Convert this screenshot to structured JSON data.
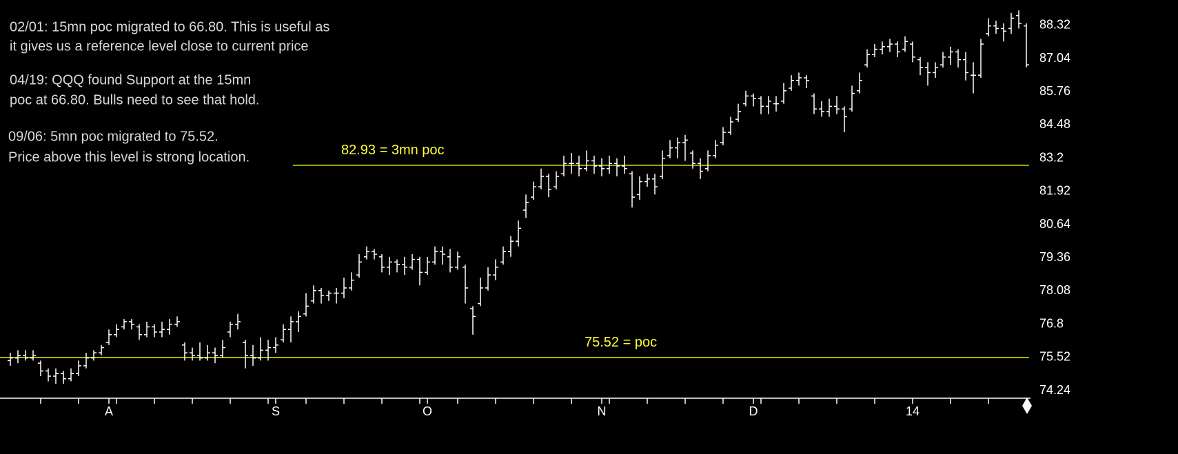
{
  "chart_data": {
    "type": "ohlc",
    "annotations": [
      "02/01: 15mn poc migrated to 66.80.  This is useful as",
      "it gives us a reference level close to current price",
      "04/19: QQQ found Support at the 15mn",
      "poc at 66.80.  Bulls need to see that hold.",
      "09/06: 5mn poc migrated to 75.52.",
      "Price above this level is strong location."
    ],
    "hlines": [
      {
        "value": 82.93,
        "label": "82.93 = 3mn poc",
        "color": "#e8e800"
      },
      {
        "value": 75.52,
        "label": "75.52 = poc",
        "color": "#e8e800"
      }
    ],
    "color": "#ffffff",
    "ylim": [
      73.95,
      89.3
    ],
    "yticks": [
      74.24,
      75.52,
      76.8,
      78.08,
      79.36,
      80.64,
      81.92,
      83.2,
      84.48,
      85.76,
      87.04,
      88.32
    ],
    "categories": [
      null,
      null,
      null,
      null,
      null,
      null,
      null,
      null,
      null,
      null,
      null,
      null,
      null,
      "A",
      null,
      null,
      null,
      null,
      null,
      null,
      null,
      null,
      null,
      null,
      null,
      null,
      null,
      null,
      null,
      null,
      null,
      null,
      null,
      null,
      null,
      "S",
      null,
      null,
      null,
      null,
      null,
      null,
      null,
      null,
      null,
      null,
      null,
      null,
      null,
      null,
      null,
      null,
      null,
      null,
      null,
      "O",
      null,
      null,
      null,
      null,
      null,
      null,
      null,
      null,
      null,
      null,
      null,
      null,
      null,
      null,
      null,
      null,
      null,
      null,
      null,
      null,
      null,
      null,
      "N",
      null,
      null,
      null,
      null,
      null,
      null,
      null,
      null,
      null,
      null,
      null,
      null,
      null,
      null,
      null,
      null,
      null,
      null,
      null,
      "D",
      null,
      null,
      null,
      null,
      null,
      null,
      null,
      null,
      null,
      null,
      null,
      null,
      null,
      null,
      null,
      null,
      null,
      null,
      null,
      null,
      "14",
      null,
      null,
      null,
      null,
      null,
      null,
      null,
      null,
      null,
      null,
      null,
      null,
      null,
      null,
      null
    ],
    "ohlc": [
      [
        75.4,
        75.7,
        75.2,
        75.5
      ],
      [
        75.5,
        75.8,
        75.3,
        75.6
      ],
      [
        75.6,
        75.8,
        75.4,
        75.5
      ],
      [
        75.5,
        75.8,
        75.4,
        75.6
      ],
      [
        75.3,
        75.4,
        74.8,
        75.0
      ],
      [
        75.0,
        75.1,
        74.6,
        74.8
      ],
      [
        74.8,
        75.1,
        74.5,
        74.9
      ],
      [
        74.9,
        75.0,
        74.5,
        74.7
      ],
      [
        74.7,
        75.1,
        74.6,
        74.9
      ],
      [
        74.9,
        75.4,
        74.8,
        75.2
      ],
      [
        75.2,
        75.7,
        75.1,
        75.5
      ],
      [
        75.5,
        75.8,
        75.4,
        75.7
      ],
      [
        75.7,
        76.0,
        75.6,
        75.9
      ],
      [
        76.1,
        76.6,
        76.0,
        76.4
      ],
      [
        76.4,
        76.8,
        76.3,
        76.6
      ],
      [
        76.7,
        77.0,
        76.6,
        76.9
      ],
      [
        76.9,
        77.0,
        76.6,
        76.8
      ],
      [
        76.7,
        76.8,
        76.2,
        76.4
      ],
      [
        76.4,
        76.9,
        76.3,
        76.7
      ],
      [
        76.7,
        76.8,
        76.3,
        76.5
      ],
      [
        76.5,
        76.9,
        76.3,
        76.6
      ],
      [
        76.6,
        77.0,
        76.4,
        76.8
      ],
      [
        76.8,
        77.1,
        76.7,
        76.9
      ],
      [
        76.0,
        76.1,
        75.4,
        75.7
      ],
      [
        75.7,
        75.9,
        75.4,
        75.6
      ],
      [
        75.6,
        76.1,
        75.4,
        75.5
      ],
      [
        75.5,
        76.0,
        75.4,
        75.7
      ],
      [
        75.7,
        75.9,
        75.3,
        75.6
      ],
      [
        75.6,
        76.2,
        75.5,
        75.9
      ],
      [
        76.5,
        76.9,
        76.3,
        76.8
      ],
      [
        76.8,
        77.2,
        76.6,
        76.9
      ],
      [
        76.1,
        76.2,
        75.1,
        75.6
      ],
      [
        75.6,
        76.0,
        75.2,
        75.5
      ],
      [
        75.5,
        76.3,
        75.4,
        75.8
      ],
      [
        75.8,
        76.2,
        75.4,
        75.9
      ],
      [
        75.9,
        76.3,
        75.7,
        76.0
      ],
      [
        76.2,
        76.8,
        76.1,
        76.6
      ],
      [
        76.6,
        77.1,
        76.1,
        76.9
      ],
      [
        76.9,
        77.3,
        76.5,
        77.1
      ],
      [
        77.2,
        78.0,
        77.1,
        77.5
      ],
      [
        77.7,
        78.3,
        77.6,
        78.1
      ],
      [
        78.1,
        78.2,
        77.6,
        77.9
      ],
      [
        77.9,
        78.1,
        77.7,
        78.0
      ],
      [
        78.0,
        78.2,
        77.6,
        78.0
      ],
      [
        78.0,
        78.6,
        77.8,
        78.2
      ],
      [
        78.2,
        78.8,
        78.1,
        78.5
      ],
      [
        78.7,
        79.5,
        78.6,
        79.2
      ],
      [
        79.4,
        79.8,
        79.3,
        79.6
      ],
      [
        79.6,
        79.7,
        79.3,
        79.5
      ],
      [
        79.4,
        79.5,
        78.8,
        79.0
      ],
      [
        79.0,
        79.4,
        78.7,
        79.2
      ],
      [
        79.2,
        79.3,
        78.8,
        79.1
      ],
      [
        79.1,
        79.4,
        78.7,
        79.0
      ],
      [
        79.0,
        79.5,
        78.9,
        79.3
      ],
      [
        79.3,
        79.4,
        78.3,
        78.8
      ],
      [
        78.8,
        79.4,
        78.7,
        79.2
      ],
      [
        79.2,
        79.8,
        79.1,
        79.6
      ],
      [
        79.6,
        79.8,
        79.1,
        79.5
      ],
      [
        79.4,
        79.7,
        78.8,
        79.0
      ],
      [
        79.0,
        79.6,
        78.9,
        79.4
      ],
      [
        79.0,
        79.1,
        77.6,
        78.2
      ],
      [
        77.4,
        77.5,
        76.4,
        77.1
      ],
      [
        77.6,
        78.6,
        77.5,
        78.2
      ],
      [
        78.2,
        79.0,
        78.1,
        78.7
      ],
      [
        78.7,
        79.3,
        78.5,
        79.0
      ],
      [
        79.2,
        79.8,
        79.1,
        79.6
      ],
      [
        79.6,
        80.2,
        79.4,
        80.0
      ],
      [
        80.0,
        80.8,
        79.8,
        80.5
      ],
      [
        81.2,
        81.8,
        80.9,
        81.5
      ],
      [
        81.7,
        82.3,
        81.6,
        82.1
      ],
      [
        82.1,
        82.8,
        82.0,
        82.5
      ],
      [
        82.5,
        82.6,
        81.7,
        82.0
      ],
      [
        82.1,
        82.7,
        82.0,
        82.5
      ],
      [
        82.6,
        83.3,
        82.5,
        83.0
      ],
      [
        83.0,
        83.4,
        82.6,
        83.0
      ],
      [
        83.0,
        83.3,
        82.5,
        82.8
      ],
      [
        82.8,
        83.5,
        82.7,
        83.1
      ],
      [
        83.1,
        83.3,
        82.6,
        82.9
      ],
      [
        82.9,
        83.2,
        82.5,
        82.8
      ],
      [
        82.8,
        83.3,
        82.6,
        83.0
      ],
      [
        83.0,
        83.2,
        82.5,
        82.9
      ],
      [
        82.9,
        83.3,
        82.6,
        82.8
      ],
      [
        82.6,
        82.7,
        81.3,
        81.7
      ],
      [
        81.8,
        82.5,
        81.6,
        82.3
      ],
      [
        82.3,
        82.6,
        82.1,
        82.4
      ],
      [
        82.4,
        82.6,
        81.8,
        82.1
      ],
      [
        82.5,
        83.5,
        82.4,
        83.2
      ],
      [
        83.3,
        83.9,
        83.2,
        83.6
      ],
      [
        83.6,
        84.0,
        83.2,
        83.8
      ],
      [
        83.8,
        84.1,
        83.1,
        83.9
      ],
      [
        83.4,
        83.5,
        82.8,
        83.0
      ],
      [
        83.0,
        83.2,
        82.4,
        82.7
      ],
      [
        82.8,
        83.5,
        82.7,
        83.3
      ],
      [
        83.3,
        83.9,
        83.2,
        83.7
      ],
      [
        83.8,
        84.4,
        83.7,
        84.2
      ],
      [
        84.2,
        84.8,
        84.1,
        84.6
      ],
      [
        84.7,
        85.3,
        84.6,
        85.0
      ],
      [
        85.3,
        85.8,
        85.2,
        85.6
      ],
      [
        85.6,
        85.7,
        85.2,
        85.5
      ],
      [
        85.5,
        85.6,
        84.9,
        85.2
      ],
      [
        85.2,
        85.6,
        84.9,
        85.4
      ],
      [
        85.3,
        85.6,
        85.0,
        85.3
      ],
      [
        85.4,
        86.1,
        85.3,
        85.8
      ],
      [
        85.9,
        86.4,
        85.8,
        86.2
      ],
      [
        86.2,
        86.5,
        86.0,
        86.3
      ],
      [
        86.3,
        86.4,
        85.9,
        86.2
      ],
      [
        85.6,
        85.7,
        84.9,
        85.1
      ],
      [
        85.1,
        85.4,
        84.8,
        85.0
      ],
      [
        85.0,
        85.5,
        84.8,
        85.2
      ],
      [
        85.2,
        85.6,
        84.9,
        85.1
      ],
      [
        85.1,
        85.2,
        84.2,
        84.8
      ],
      [
        85.1,
        86.0,
        85.0,
        85.7
      ],
      [
        85.8,
        86.5,
        85.7,
        86.2
      ],
      [
        86.8,
        87.4,
        86.7,
        87.2
      ],
      [
        87.2,
        87.6,
        87.1,
        87.4
      ],
      [
        87.4,
        87.7,
        87.2,
        87.5
      ],
      [
        87.5,
        87.8,
        87.3,
        87.6
      ],
      [
        87.6,
        87.7,
        87.1,
        87.3
      ],
      [
        87.4,
        87.9,
        87.3,
        87.7
      ],
      [
        87.6,
        87.7,
        86.9,
        87.1
      ],
      [
        87.0,
        87.1,
        86.4,
        86.7
      ],
      [
        86.7,
        86.9,
        86.0,
        86.5
      ],
      [
        86.5,
        86.9,
        86.3,
        86.7
      ],
      [
        86.8,
        87.3,
        86.7,
        87.1
      ],
      [
        87.1,
        87.5,
        86.8,
        87.3
      ],
      [
        87.3,
        87.4,
        86.7,
        87.0
      ],
      [
        87.0,
        87.3,
        86.2,
        86.5
      ],
      [
        86.4,
        86.9,
        85.7,
        86.4
      ],
      [
        86.4,
        87.8,
        86.3,
        87.6
      ],
      [
        88.0,
        88.6,
        87.9,
        88.3
      ],
      [
        88.3,
        88.5,
        88.0,
        88.2
      ],
      [
        88.2,
        88.4,
        87.7,
        88.1
      ],
      [
        88.2,
        88.8,
        88.0,
        88.6
      ],
      [
        88.7,
        88.9,
        88.2,
        88.4
      ],
      [
        88.3,
        88.4,
        86.7,
        86.8
      ]
    ]
  }
}
